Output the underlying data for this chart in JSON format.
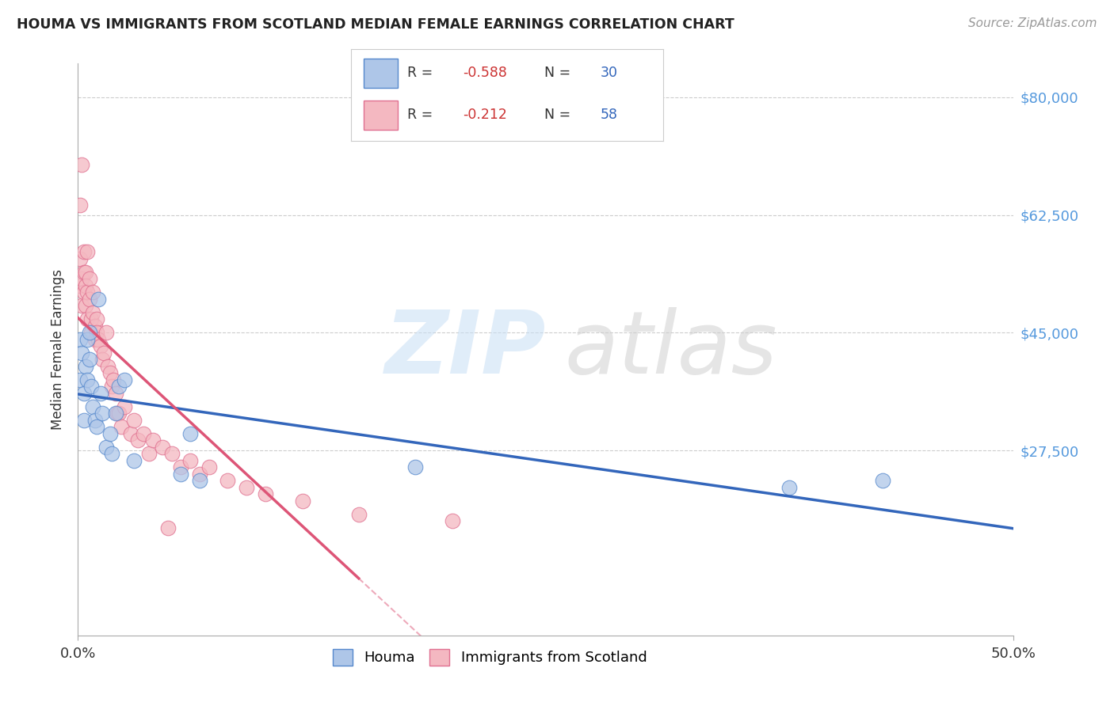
{
  "title": "HOUMA VS IMMIGRANTS FROM SCOTLAND MEDIAN FEMALE EARNINGS CORRELATION CHART",
  "source": "Source: ZipAtlas.com",
  "ylabel": "Median Female Earnings",
  "r_houma": "-0.588",
  "n_houma": "30",
  "r_scotland": "-0.212",
  "n_scotland": "58",
  "xlim": [
    0,
    0.5
  ],
  "ylim": [
    0,
    85000
  ],
  "ytick_vals": [
    0,
    27500,
    45000,
    62500,
    80000
  ],
  "ytick_labels_right": [
    "",
    "$27,500",
    "$45,000",
    "$62,500",
    "$80,000"
  ],
  "xtick_vals": [
    0.0,
    0.5
  ],
  "xtick_labels": [
    "0.0%",
    "50.0%"
  ],
  "color_houma": "#aec6e8",
  "color_scotland": "#f4b8c1",
  "edge_color_houma": "#5588cc",
  "edge_color_scotland": "#e07090",
  "line_color_houma": "#3366bb",
  "line_color_scotland": "#dd5577",
  "bg_color": "#ffffff",
  "grid_color": "#cccccc",
  "legend_labels": [
    "Houma",
    "Immigrants from Scotland"
  ],
  "houma_x": [
    0.001,
    0.001,
    0.002,
    0.003,
    0.003,
    0.004,
    0.005,
    0.005,
    0.006,
    0.006,
    0.007,
    0.008,
    0.009,
    0.01,
    0.011,
    0.012,
    0.013,
    0.015,
    0.017,
    0.018,
    0.02,
    0.022,
    0.025,
    0.03,
    0.055,
    0.06,
    0.065,
    0.18,
    0.38,
    0.43
  ],
  "houma_y": [
    44000,
    38000,
    42000,
    36000,
    32000,
    40000,
    44000,
    38000,
    45000,
    41000,
    37000,
    34000,
    32000,
    31000,
    50000,
    36000,
    33000,
    28000,
    30000,
    27000,
    33000,
    37000,
    38000,
    26000,
    24000,
    30000,
    23000,
    25000,
    22000,
    23000
  ],
  "scotland_x": [
    0.001,
    0.001,
    0.001,
    0.002,
    0.002,
    0.002,
    0.003,
    0.003,
    0.003,
    0.004,
    0.004,
    0.004,
    0.005,
    0.005,
    0.005,
    0.006,
    0.006,
    0.007,
    0.007,
    0.008,
    0.008,
    0.009,
    0.009,
    0.01,
    0.01,
    0.011,
    0.012,
    0.013,
    0.014,
    0.015,
    0.016,
    0.017,
    0.018,
    0.019,
    0.02,
    0.021,
    0.022,
    0.023,
    0.025,
    0.028,
    0.03,
    0.032,
    0.035,
    0.038,
    0.04,
    0.045,
    0.048,
    0.05,
    0.055,
    0.06,
    0.065,
    0.07,
    0.08,
    0.09,
    0.1,
    0.12,
    0.15,
    0.2
  ],
  "scotland_y": [
    64000,
    56000,
    52000,
    70000,
    53000,
    49000,
    57000,
    54000,
    51000,
    54000,
    52000,
    49000,
    57000,
    51000,
    47000,
    53000,
    50000,
    47000,
    45000,
    51000,
    48000,
    46000,
    44000,
    47000,
    45000,
    44000,
    43000,
    41000,
    42000,
    45000,
    40000,
    39000,
    37000,
    38000,
    36000,
    33000,
    33000,
    31000,
    34000,
    30000,
    32000,
    29000,
    30000,
    27000,
    29000,
    28000,
    16000,
    27000,
    25000,
    26000,
    24000,
    25000,
    23000,
    22000,
    21000,
    20000,
    18000,
    17000
  ]
}
